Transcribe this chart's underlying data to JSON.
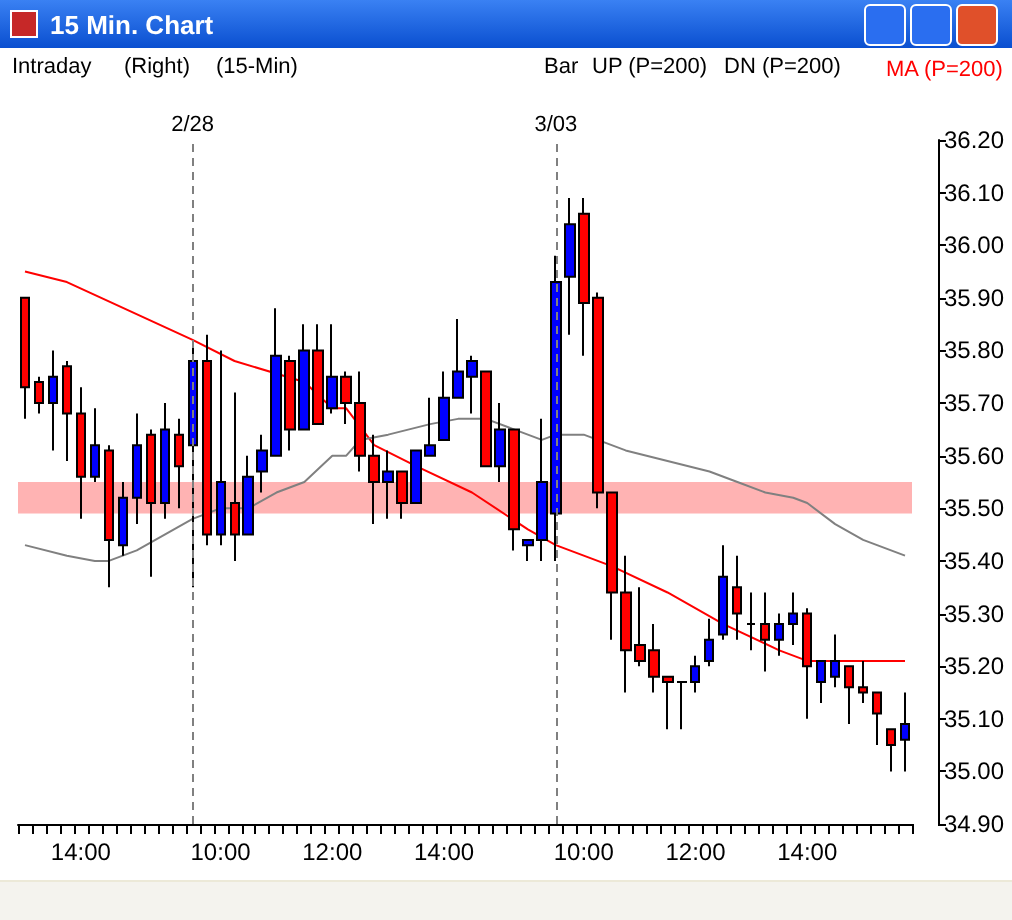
{
  "chart_data": {
    "type": "candlestick",
    "title": "15 Min. Chart",
    "annotations": [
      "Intraday",
      "(Right)",
      "(15-Min)",
      "Bar",
      "UP (P=200)",
      "DN (P=200)",
      "2/28",
      "3/03"
    ],
    "categories": [
      null,
      null,
      null,
      null,
      "14:00",
      null,
      null,
      null,
      null,
      null,
      null,
      null,
      null,
      null,
      "10:00",
      null,
      null,
      null,
      null,
      null,
      null,
      null,
      "12:00",
      null,
      null,
      null,
      null,
      null,
      null,
      null,
      "14:00",
      null,
      null,
      null,
      null,
      null,
      null,
      null,
      null,
      null,
      "10:00",
      null,
      null,
      null,
      null,
      null,
      null,
      null,
      "12:00",
      null,
      null,
      null,
      null,
      null,
      null,
      null,
      "14:00",
      null,
      null,
      null,
      null,
      null,
      null,
      null
    ],
    "ohlc": [
      [
        35.9,
        35.9,
        35.67,
        35.73
      ],
      [
        35.74,
        35.75,
        35.68,
        35.7
      ],
      [
        35.7,
        35.8,
        35.61,
        35.75
      ],
      [
        35.77,
        35.78,
        35.59,
        35.68
      ],
      [
        35.68,
        35.73,
        35.48,
        35.56
      ],
      [
        35.56,
        35.69,
        35.55,
        35.62
      ],
      [
        35.61,
        35.62,
        35.35,
        35.44
      ],
      [
        35.43,
        35.55,
        35.41,
        35.52
      ],
      [
        35.52,
        35.68,
        35.47,
        35.62
      ],
      [
        35.64,
        35.65,
        35.37,
        35.51
      ],
      [
        35.51,
        35.7,
        35.48,
        35.65
      ],
      [
        35.64,
        35.67,
        35.5,
        35.58
      ],
      [
        35.62,
        35.81,
        35.35,
        35.78
      ],
      [
        35.78,
        35.83,
        35.43,
        35.45
      ],
      [
        35.45,
        35.8,
        35.43,
        35.55
      ],
      [
        35.51,
        35.72,
        35.4,
        35.45
      ],
      [
        35.45,
        35.6,
        35.45,
        35.56
      ],
      [
        35.57,
        35.64,
        35.53,
        35.61
      ],
      [
        35.6,
        35.88,
        35.6,
        35.79
      ],
      [
        35.78,
        35.79,
        35.61,
        35.65
      ],
      [
        35.65,
        35.85,
        35.65,
        35.8
      ],
      [
        35.8,
        35.85,
        35.66,
        35.66
      ],
      [
        35.69,
        35.85,
        35.68,
        35.75
      ],
      [
        35.75,
        35.76,
        35.66,
        35.7
      ],
      [
        35.7,
        35.76,
        35.57,
        35.6
      ],
      [
        35.6,
        35.64,
        35.47,
        35.55
      ],
      [
        35.55,
        35.61,
        35.48,
        35.57
      ],
      [
        35.57,
        35.57,
        35.48,
        35.51
      ],
      [
        35.51,
        35.61,
        35.51,
        35.61
      ],
      [
        35.6,
        35.71,
        35.6,
        35.62
      ],
      [
        35.63,
        35.76,
        35.63,
        35.71
      ],
      [
        35.71,
        35.86,
        35.71,
        35.76
      ],
      [
        35.75,
        35.79,
        35.68,
        35.78
      ],
      [
        35.76,
        35.76,
        35.58,
        35.58
      ],
      [
        35.58,
        35.7,
        35.55,
        35.65
      ],
      [
        35.65,
        35.65,
        35.42,
        35.46
      ],
      [
        35.43,
        35.44,
        35.4,
        35.44
      ],
      [
        35.44,
        35.67,
        35.4,
        35.55
      ],
      [
        35.49,
        35.98,
        35.4,
        35.93
      ],
      [
        35.94,
        36.09,
        35.83,
        36.04
      ],
      [
        36.06,
        36.09,
        35.79,
        35.89
      ],
      [
        35.9,
        35.91,
        35.5,
        35.53
      ],
      [
        35.53,
        35.53,
        35.25,
        35.34
      ],
      [
        35.34,
        35.41,
        35.15,
        35.23
      ],
      [
        35.24,
        35.35,
        35.2,
        35.21
      ],
      [
        35.23,
        35.28,
        35.15,
        35.18
      ],
      [
        35.18,
        35.18,
        35.08,
        35.17
      ],
      [
        35.17,
        35.17,
        35.08,
        35.17
      ],
      [
        35.17,
        35.22,
        35.15,
        35.2
      ],
      [
        35.21,
        35.29,
        35.2,
        35.25
      ],
      [
        35.26,
        35.43,
        35.25,
        35.37
      ],
      [
        35.35,
        35.41,
        35.25,
        35.3
      ],
      [
        35.28,
        35.34,
        35.23,
        35.28
      ],
      [
        35.28,
        35.34,
        35.19,
        35.25
      ],
      [
        35.25,
        35.3,
        35.22,
        35.28
      ],
      [
        35.28,
        35.34,
        35.24,
        35.3
      ],
      [
        35.3,
        35.31,
        35.1,
        35.2
      ],
      [
        35.17,
        35.21,
        35.13,
        35.21
      ],
      [
        35.18,
        35.26,
        35.16,
        35.21
      ],
      [
        35.2,
        35.2,
        35.09,
        35.16
      ],
      [
        35.16,
        35.21,
        35.13,
        35.15
      ],
      [
        35.15,
        35.15,
        35.05,
        35.11
      ],
      [
        35.08,
        35.08,
        35.0,
        35.05
      ],
      [
        35.06,
        35.15,
        35.0,
        35.09
      ]
    ],
    "colors": [
      "#ff0000",
      "#ff0000",
      "#0000ff",
      "#ff0000",
      "#ff0000",
      "#0000ff",
      "#ff0000",
      "#0000ff",
      "#0000ff",
      "#ff0000",
      "#0000ff",
      "#ff0000",
      "#0000ff",
      "#ff0000",
      "#0000ff",
      "#ff0000",
      "#0000ff",
      "#0000ff",
      "#0000ff",
      "#ff0000",
      "#0000ff",
      "#ff0000",
      "#0000ff",
      "#ff0000",
      "#ff0000",
      "#ff0000",
      "#0000ff",
      "#ff0000",
      "#0000ff",
      "#0000ff",
      "#0000ff",
      "#0000ff",
      "#0000ff",
      "#ff0000",
      "#0000ff",
      "#ff0000",
      "#0000ff",
      "#0000ff",
      "#0000ff",
      "#0000ff",
      "#ff0000",
      "#ff0000",
      "#ff0000",
      "#ff0000",
      "#ff0000",
      "#ff0000",
      "#ff0000",
      "#000000",
      "#0000ff",
      "#0000ff",
      "#0000ff",
      "#ff0000",
      "#000000",
      "#ff0000",
      "#0000ff",
      "#0000ff",
      "#ff0000",
      "#0000ff",
      "#0000ff",
      "#ff0000",
      "#ff0000",
      "#ff0000",
      "#ff0000",
      "#0000ff"
    ],
    "series": [
      {
        "type": "line",
        "name": "MA (P=200)",
        "color": "#ff0000",
        "values": [
          35.95,
          null,
          null,
          35.93,
          null,
          null,
          null,
          null,
          null,
          null,
          null,
          null,
          35.82,
          null,
          null,
          35.78,
          null,
          null,
          null,
          null,
          35.74,
          null,
          35.69,
          35.69,
          null,
          35.62,
          null,
          null,
          35.58,
          null,
          null,
          null,
          35.53,
          null,
          null,
          null,
          35.46,
          null,
          35.43,
          null,
          null,
          null,
          35.39,
          null,
          null,
          null,
          35.34,
          null,
          null,
          null,
          35.28,
          null,
          null,
          null,
          35.23,
          null,
          35.21,
          null,
          null,
          null,
          null,
          null,
          null,
          35.21
        ]
      },
      {
        "type": "line",
        "color": "#808080",
        "values": [
          35.43,
          null,
          null,
          35.41,
          null,
          35.4,
          35.4,
          null,
          35.42,
          null,
          35.45,
          null,
          35.48,
          null,
          35.5,
          null,
          35.5,
          null,
          35.53,
          null,
          35.55,
          null,
          35.6,
          35.6,
          35.63,
          null,
          35.64,
          null,
          null,
          35.66,
          null,
          35.67,
          null,
          35.67,
          null,
          35.65,
          35.64,
          35.63,
          35.64,
          null,
          35.64,
          35.63,
          null,
          35.61,
          null,
          null,
          35.59,
          null,
          null,
          35.57,
          null,
          35.55,
          null,
          35.53,
          null,
          35.52,
          35.51,
          null,
          35.47,
          null,
          35.44,
          null,
          null,
          35.41
        ]
      }
    ],
    "ylim": [
      34.9,
      36.2
    ],
    "yticks": [
      {
        "value": 34.9,
        "label": "34.90"
      },
      {
        "value": 35.0,
        "label": "35.00"
      },
      {
        "value": 35.1,
        "label": "35.10"
      },
      {
        "value": 35.2,
        "label": "35.20"
      },
      {
        "value": 35.3,
        "label": "35.30"
      },
      {
        "value": 35.4,
        "label": "35.40"
      },
      {
        "value": 35.5,
        "label": "35.50"
      },
      {
        "value": 35.6,
        "label": "35.60"
      },
      {
        "value": 35.7,
        "label": "35.70"
      },
      {
        "value": 35.8,
        "label": "35.80"
      },
      {
        "value": 35.9,
        "label": "35.90"
      },
      {
        "value": 36.0,
        "label": "36.00"
      },
      {
        "value": 36.1,
        "label": "36.10"
      },
      {
        "value": 36.2,
        "label": "36.20"
      }
    ],
    "bands": [
      {
        "axis": "y",
        "from": 35.49,
        "to": 35.55,
        "color": "#ff9999"
      }
    ],
    "grid": false,
    "legend": "top right",
    "marker": "none"
  }
}
